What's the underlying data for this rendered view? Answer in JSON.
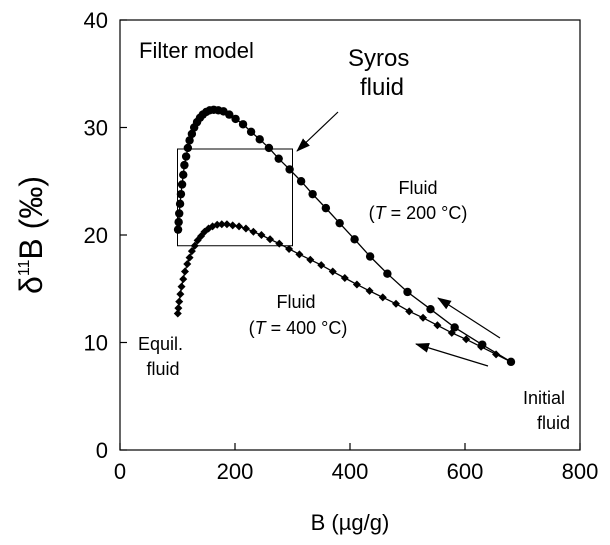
{
  "chart_data": {
    "type": "scatter",
    "title": "Filter model",
    "xlabel": "B (µg/g)",
    "ylabel": {
      "delta": "δ",
      "sup": "11",
      "rest": "B (‰)"
    },
    "xlim": [
      0,
      800
    ],
    "ylim": [
      0,
      40
    ],
    "xticks": [
      0,
      200,
      400,
      600,
      800
    ],
    "yticks": [
      0,
      10,
      20,
      30,
      40
    ],
    "grid": false,
    "legend": "none",
    "series": [
      {
        "marker": "circle",
        "color": "#000000",
        "points": [
          [
            680,
            8.2
          ],
          [
            630,
            9.8
          ],
          [
            582,
            11.4
          ],
          [
            540,
            13.1
          ],
          [
            500,
            14.7
          ],
          [
            465,
            16.4
          ],
          [
            435,
            18.0
          ],
          [
            408,
            19.6
          ],
          [
            382,
            21.1
          ],
          [
            358,
            22.5
          ],
          [
            335,
            23.8
          ],
          [
            315,
            25.0
          ],
          [
            295,
            26.1
          ],
          [
            276,
            27.1
          ],
          [
            259,
            28.1
          ],
          [
            243,
            28.9
          ],
          [
            228,
            29.6
          ],
          [
            214,
            30.3
          ],
          [
            201,
            30.8
          ],
          [
            190,
            31.2
          ],
          [
            180,
            31.5
          ],
          [
            171,
            31.6
          ],
          [
            163,
            31.65
          ],
          [
            156,
            31.6
          ],
          [
            150,
            31.45
          ],
          [
            144,
            31.2
          ],
          [
            139,
            30.9
          ],
          [
            134,
            30.5
          ],
          [
            129,
            30.0
          ],
          [
            125,
            29.4
          ],
          [
            121,
            28.8
          ],
          [
            118,
            28.1
          ],
          [
            115,
            27.3
          ],
          [
            112,
            26.5
          ],
          [
            110,
            25.6
          ],
          [
            108,
            24.7
          ],
          [
            106,
            23.8
          ],
          [
            104.5,
            22.9
          ],
          [
            103,
            22.0
          ],
          [
            102,
            21.2
          ],
          [
            101,
            20.5
          ]
        ]
      },
      {
        "marker": "diamond",
        "color": "#000000",
        "points": [
          [
            680,
            8.2
          ],
          [
            654,
            8.9
          ],
          [
            628,
            9.6
          ],
          [
            602,
            10.3
          ],
          [
            577,
            10.9
          ],
          [
            552,
            11.6
          ],
          [
            527,
            12.3
          ],
          [
            503,
            12.9
          ],
          [
            480,
            13.6
          ],
          [
            457,
            14.2
          ],
          [
            434,
            14.8
          ],
          [
            412,
            15.4
          ],
          [
            391,
            16.0
          ],
          [
            370,
            16.6
          ],
          [
            350,
            17.2
          ],
          [
            331,
            17.7
          ],
          [
            312,
            18.2
          ],
          [
            294,
            18.7
          ],
          [
            277,
            19.2
          ],
          [
            261,
            19.6
          ],
          [
            246,
            20.0
          ],
          [
            232,
            20.3
          ],
          [
            219,
            20.6
          ],
          [
            207,
            20.8
          ],
          [
            196,
            20.9
          ],
          [
            186,
            21.0
          ],
          [
            177,
            21.0
          ],
          [
            169,
            20.95
          ],
          [
            161,
            20.8
          ],
          [
            154,
            20.6
          ],
          [
            147,
            20.3
          ],
          [
            141,
            19.9
          ],
          [
            135,
            19.5
          ],
          [
            130,
            19.0
          ],
          [
            125,
            18.5
          ],
          [
            121,
            17.9
          ],
          [
            117,
            17.3
          ],
          [
            113,
            16.6
          ],
          [
            110,
            15.9
          ],
          [
            107,
            15.2
          ],
          [
            105,
            14.5
          ],
          [
            103,
            13.8
          ],
          [
            101.5,
            13.2
          ],
          [
            100.5,
            12.7
          ]
        ]
      }
    ],
    "box": {
      "x": [
        100,
        300
      ],
      "y": [
        19,
        28
      ]
    },
    "annotations": {
      "syros": [
        "Syros",
        "fluid"
      ],
      "fluid200": {
        "line1": "Fluid",
        "open": "(",
        "T": "T",
        "rest": " = 200 °C)"
      },
      "fluid400": {
        "line1": "Fluid",
        "open": "(",
        "T": "T",
        "rest": " = 400 °C)"
      },
      "equil": [
        "Equil.",
        "fluid"
      ],
      "initial": [
        "Initial",
        "fluid"
      ]
    }
  }
}
